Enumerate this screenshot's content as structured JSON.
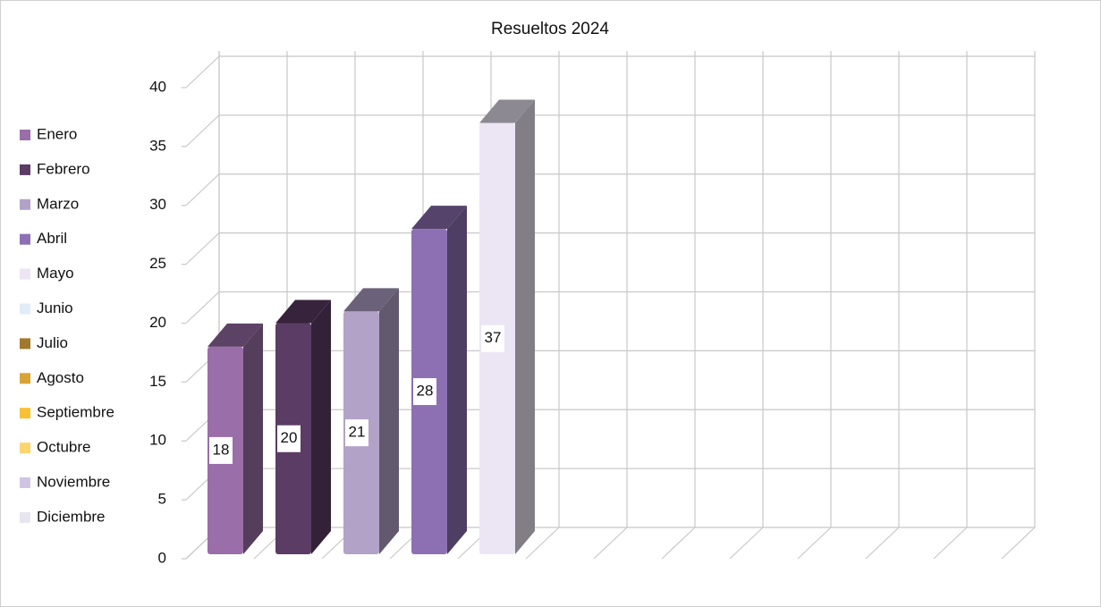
{
  "chart_data": {
    "type": "bar3d",
    "title": "Resueltos 2024",
    "categories": [
      "Enero",
      "Febrero",
      "Marzo",
      "Abril",
      "Mayo",
      "Junio",
      "Julio",
      "Agosto",
      "Septiembre",
      "Octubre",
      "Noviembre",
      "Diciembre"
    ],
    "values": [
      18,
      20,
      21,
      28,
      37,
      null,
      null,
      null,
      null,
      null,
      null,
      null
    ],
    "colors": [
      "#9a6ea8",
      "#5b3c64",
      "#b2a2c8",
      "#8d70b4",
      "#ebe5f4",
      "#e2ecf8",
      "#a0792d",
      "#d8a436",
      "#f8c033",
      "#fbd56e",
      "#cfc5e2",
      "#e7e5ef"
    ],
    "ylim": [
      0,
      40
    ],
    "yticks": [
      0,
      5,
      10,
      15,
      20,
      25,
      30,
      35,
      40
    ],
    "grid": true,
    "legend": "left"
  }
}
